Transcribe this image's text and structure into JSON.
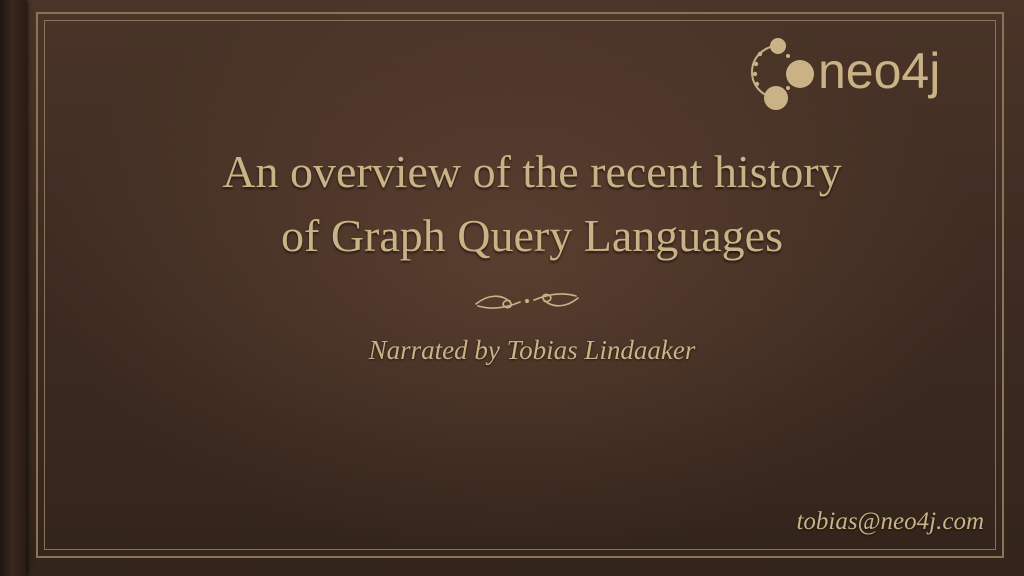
{
  "slide": {
    "title_lines": [
      "An overview of the recent history",
      "of Graph Query Languages"
    ],
    "subtitle": "Narrated by Tobias Lindaaker",
    "email": "tobias@neo4j.com"
  },
  "logo": {
    "text": "neo4j",
    "icon": "neo4j-graph-logo-icon"
  },
  "colors": {
    "text_gold": "#c9b386",
    "leather_dark": "#2f2018",
    "frame_line": "#8a7456"
  }
}
